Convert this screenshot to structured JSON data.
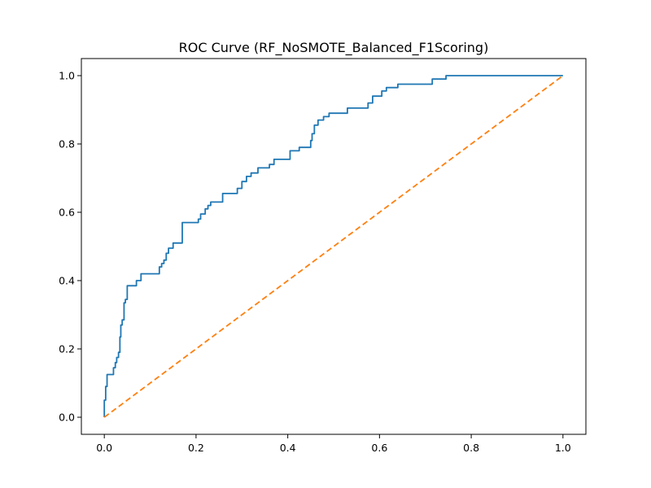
{
  "chart_data": {
    "type": "line",
    "title": "ROC Curve (RF_NoSMOTE_Balanced_F1Scoring)",
    "xlabel": "",
    "ylabel": "",
    "xlim": [
      -0.05,
      1.05
    ],
    "ylim": [
      -0.05,
      1.05
    ],
    "grid": false,
    "x_ticks": [
      0.0,
      0.2,
      0.4,
      0.6,
      0.8,
      1.0
    ],
    "x_tick_labels": [
      "0.0",
      "0.2",
      "0.4",
      "0.6",
      "0.8",
      "1.0"
    ],
    "y_ticks": [
      0.0,
      0.2,
      0.4,
      0.6,
      0.8,
      1.0
    ],
    "y_tick_labels": [
      "0.0",
      "0.2",
      "0.4",
      "0.6",
      "0.8",
      "1.0"
    ],
    "series": [
      {
        "color": "#1f77b4",
        "style": "solid",
        "x": [
          0.0,
          0.0,
          0.003,
          0.003,
          0.006,
          0.006,
          0.01,
          0.01,
          0.02,
          0.02,
          0.024,
          0.024,
          0.027,
          0.027,
          0.031,
          0.031,
          0.034,
          0.034,
          0.036,
          0.036,
          0.039,
          0.039,
          0.043,
          0.043,
          0.046,
          0.046,
          0.05,
          0.05,
          0.056,
          0.056,
          0.07,
          0.07,
          0.08,
          0.08,
          0.12,
          0.12,
          0.125,
          0.125,
          0.13,
          0.13,
          0.135,
          0.135,
          0.14,
          0.14,
          0.15,
          0.15,
          0.17,
          0.17,
          0.205,
          0.205,
          0.21,
          0.21,
          0.22,
          0.22,
          0.226,
          0.226,
          0.232,
          0.232,
          0.258,
          0.258,
          0.29,
          0.29,
          0.3,
          0.3,
          0.31,
          0.31,
          0.32,
          0.32,
          0.335,
          0.335,
          0.36,
          0.36,
          0.37,
          0.37,
          0.405,
          0.405,
          0.425,
          0.425,
          0.45,
          0.45,
          0.453,
          0.453,
          0.458,
          0.458,
          0.466,
          0.466,
          0.478,
          0.478,
          0.49,
          0.49,
          0.53,
          0.53,
          0.575,
          0.575,
          0.585,
          0.585,
          0.605,
          0.605,
          0.615,
          0.615,
          0.64,
          0.64,
          0.715,
          0.715,
          0.745,
          0.745,
          1.0
        ],
        "y": [
          0.0,
          0.05,
          0.05,
          0.09,
          0.09,
          0.125,
          0.125,
          0.125,
          0.125,
          0.145,
          0.145,
          0.16,
          0.16,
          0.175,
          0.175,
          0.19,
          0.19,
          0.235,
          0.235,
          0.27,
          0.27,
          0.285,
          0.285,
          0.335,
          0.335,
          0.345,
          0.345,
          0.385,
          0.385,
          0.385,
          0.385,
          0.4,
          0.4,
          0.42,
          0.42,
          0.44,
          0.44,
          0.45,
          0.45,
          0.46,
          0.46,
          0.48,
          0.48,
          0.495,
          0.495,
          0.51,
          0.51,
          0.57,
          0.57,
          0.58,
          0.58,
          0.595,
          0.595,
          0.61,
          0.61,
          0.62,
          0.62,
          0.63,
          0.63,
          0.655,
          0.655,
          0.67,
          0.67,
          0.69,
          0.69,
          0.705,
          0.705,
          0.715,
          0.715,
          0.73,
          0.73,
          0.74,
          0.74,
          0.755,
          0.755,
          0.78,
          0.78,
          0.79,
          0.79,
          0.81,
          0.81,
          0.83,
          0.83,
          0.855,
          0.855,
          0.87,
          0.87,
          0.88,
          0.88,
          0.89,
          0.89,
          0.905,
          0.905,
          0.92,
          0.92,
          0.94,
          0.94,
          0.955,
          0.955,
          0.965,
          0.965,
          0.975,
          0.975,
          0.99,
          0.99,
          1.0,
          1.0
        ]
      },
      {
        "color": "#ff7f0e",
        "style": "dashed",
        "x": [
          0.0,
          1.0
        ],
        "y": [
          0.0,
          1.0
        ]
      }
    ]
  }
}
